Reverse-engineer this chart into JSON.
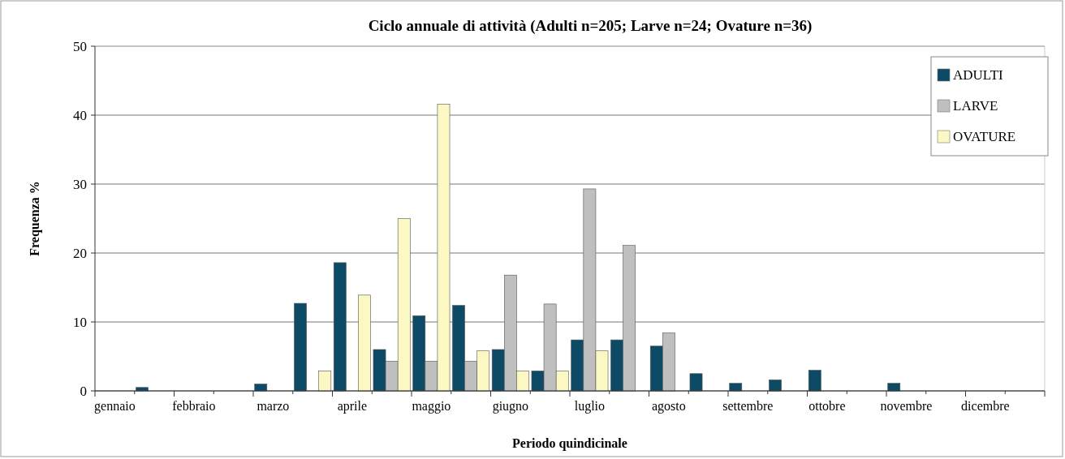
{
  "chart_data": {
    "type": "bar",
    "title": "Ciclo annuale di attività (Adulti n=205; Larve n=24; Ovature n=36)",
    "xlabel": "Periodo quindicinale",
    "ylabel": "Frequenza %",
    "categories": [
      "gennaio",
      null,
      "febbraio",
      null,
      "marzo",
      null,
      "aprile",
      null,
      "maggio",
      null,
      "giugno",
      null,
      "luglio",
      null,
      "agosto",
      null,
      "settembre",
      null,
      "ottobre",
      null,
      "novembre",
      null,
      "dicembre",
      null
    ],
    "series": [
      {
        "name": "ADULTI",
        "color": "#0d4a66",
        "values": [
          0,
          0.5,
          0,
          0,
          1.0,
          12.7,
          18.6,
          6.0,
          10.9,
          12.4,
          6.0,
          2.9,
          7.4,
          7.4,
          6.5,
          2.5,
          1.1,
          1.6,
          3.0,
          0,
          1.1,
          0,
          0,
          0
        ]
      },
      {
        "name": "LARVE",
        "color": "#bfbfbf",
        "values": [
          0,
          0,
          0,
          0,
          0,
          0,
          0,
          4.3,
          4.3,
          4.3,
          16.8,
          12.6,
          29.3,
          21.1,
          8.4,
          0,
          0,
          0,
          0,
          0,
          0,
          0,
          0,
          0
        ]
      },
      {
        "name": "OVATURE",
        "color": "#fbf8c4",
        "values": [
          0,
          0,
          0,
          0,
          0,
          2.9,
          13.9,
          25.0,
          41.6,
          5.8,
          2.9,
          2.9,
          5.8,
          0,
          0,
          0,
          0,
          0,
          0,
          0,
          0,
          0,
          0,
          0
        ]
      }
    ],
    "ylim": [
      0,
      50
    ],
    "yticks": [
      0,
      10,
      20,
      30,
      40,
      50
    ],
    "grid": "y",
    "legend": "top right"
  }
}
